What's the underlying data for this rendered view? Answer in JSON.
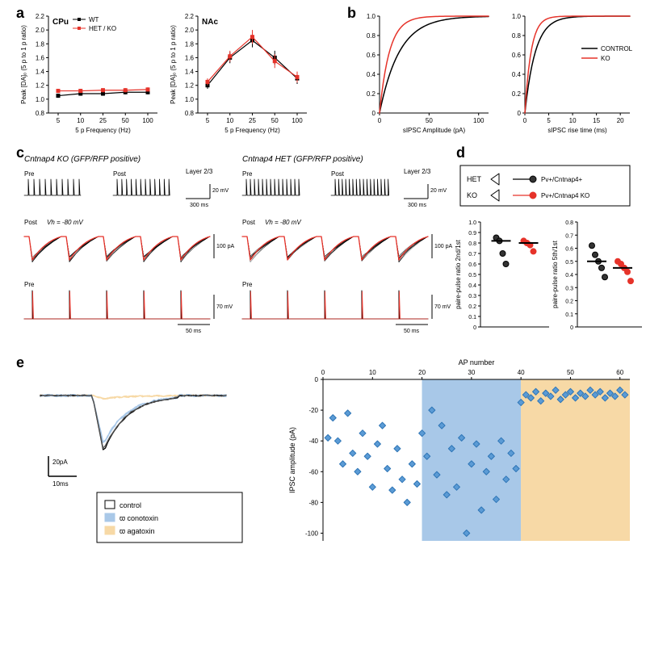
{
  "colors": {
    "bg": "#ffffff",
    "black": "#000000",
    "red": "#e6332a",
    "lightblue_fill": "#a9c8e8",
    "orange_fill": "#f7d9a6",
    "blue_marker": "#5b9bd5",
    "blue_marker_edge": "#2e75b6",
    "gray_trace": "#7a7a7a"
  },
  "panel_a": {
    "label": "a",
    "cpu_title": "CPu",
    "nac_title": "NAc",
    "legend_wt": "WT",
    "legend_mut": "HET / KO",
    "ylabel": "Peak [DA]ₒ (5 p to 1 p ratio)",
    "xlabel": "5 p Frequency (Hz)",
    "xticks": [
      "5",
      "10",
      "25",
      "50",
      "100"
    ],
    "yticks": [
      "0.8",
      "1.0",
      "1.2",
      "1.4",
      "1.6",
      "1.8",
      "2.0",
      "2.2"
    ],
    "cpu_wt": {
      "y": [
        1.05,
        1.08,
        1.08,
        1.1,
        1.1
      ],
      "err": [
        0.03,
        0.03,
        0.03,
        0.03,
        0.03
      ]
    },
    "cpu_mut": {
      "y": [
        1.12,
        1.12,
        1.13,
        1.13,
        1.14
      ],
      "err": [
        0.03,
        0.03,
        0.03,
        0.03,
        0.03
      ]
    },
    "nac_wt": {
      "y": [
        1.2,
        1.6,
        1.85,
        1.6,
        1.3
      ],
      "err": [
        0.05,
        0.08,
        0.1,
        0.1,
        0.08
      ]
    },
    "nac_mut": {
      "y": [
        1.25,
        1.62,
        1.9,
        1.55,
        1.32
      ],
      "err": [
        0.05,
        0.08,
        0.1,
        0.1,
        0.08
      ]
    }
  },
  "panel_b": {
    "label": "b",
    "left_xlabel": "sIPSC Amplitude (pA)",
    "right_xlabel": "sIPSC rise time (ms)",
    "legend_control": "CONTROL",
    "legend_ko": "KO",
    "yticks": [
      "0",
      "0.2",
      "0.4",
      "0.6",
      "0.8",
      "1.0"
    ],
    "left_xticks": [
      "0",
      "50",
      "100"
    ],
    "right_xticks": [
      "0",
      "5",
      "10",
      "15",
      "20"
    ]
  },
  "panel_c": {
    "label": "c",
    "ko_title": "Cntnap4 KO (GFP/RFP positive)",
    "het_title": "Cntnap4 HET (GFP/RFP positive)",
    "pre": "Pre",
    "post": "Post",
    "layer": "Layer 2/3",
    "vh": "Vh = -80 mV",
    "scale_300ms": "300 ms",
    "scale_20mV": "20 mV",
    "scale_100pA": "100 pA",
    "scale_50ms": "50 ms",
    "scale_70mV": "70 mV"
  },
  "panel_d": {
    "label": "d",
    "het_label": "HET",
    "ko_label": "KO",
    "het_arrow_text": "Pv+/Cntnap4+",
    "ko_arrow_text": "Pv+/Cntnap4 KO",
    "left_ylabel": "paire-pulse ratio 2nd/1st",
    "right_ylabel": "paire-pulse ratio 5th/1st",
    "left_yticks": [
      "0",
      "0.1",
      "0.2",
      "0.3",
      "0.4",
      "0.5",
      "0.6",
      "0.7",
      "0.8",
      "0.9",
      "1.0"
    ],
    "right_yticks": [
      "0",
      "0.1",
      "0.2",
      "0.3",
      "0.4",
      "0.5",
      "0.6",
      "0.7",
      "0.8"
    ],
    "left_het": [
      0.85,
      0.82,
      0.7,
      0.6
    ],
    "left_ko": [
      0.82,
      0.8,
      0.78,
      0.72
    ],
    "right_het": [
      0.62,
      0.55,
      0.5,
      0.45,
      0.38
    ],
    "right_ko": [
      0.5,
      0.48,
      0.45,
      0.42,
      0.35
    ]
  },
  "panel_e": {
    "label": "e",
    "legend_control": "control",
    "legend_conotoxin": "ϖ conotoxin",
    "legend_agatoxin": "ϖ agatoxin",
    "scale_20pA": "20pA",
    "scale_10ms": "10ms",
    "right_xlabel": "AP number",
    "right_ylabel": "IPSC amplitude (pA)",
    "xticks": [
      "0",
      "10",
      "20",
      "30",
      "40",
      "50",
      "60"
    ],
    "yticks": [
      "0",
      "-20",
      "-40",
      "-60",
      "-80",
      "-100"
    ],
    "zone1_start": 20,
    "zone1_end": 40,
    "zone2_start": 40,
    "zone2_end": 62,
    "points": [
      [
        1,
        -38
      ],
      [
        2,
        -25
      ],
      [
        3,
        -40
      ],
      [
        4,
        -55
      ],
      [
        5,
        -22
      ],
      [
        6,
        -48
      ],
      [
        7,
        -60
      ],
      [
        8,
        -35
      ],
      [
        9,
        -50
      ],
      [
        10,
        -70
      ],
      [
        11,
        -42
      ],
      [
        12,
        -30
      ],
      [
        13,
        -58
      ],
      [
        14,
        -72
      ],
      [
        15,
        -45
      ],
      [
        16,
        -65
      ],
      [
        17,
        -80
      ],
      [
        18,
        -55
      ],
      [
        19,
        -68
      ],
      [
        20,
        -35
      ],
      [
        21,
        -50
      ],
      [
        22,
        -20
      ],
      [
        23,
        -62
      ],
      [
        24,
        -30
      ],
      [
        25,
        -75
      ],
      [
        26,
        -45
      ],
      [
        27,
        -70
      ],
      [
        28,
        -38
      ],
      [
        29,
        -100
      ],
      [
        30,
        -55
      ],
      [
        31,
        -42
      ],
      [
        32,
        -85
      ],
      [
        33,
        -60
      ],
      [
        34,
        -50
      ],
      [
        35,
        -78
      ],
      [
        36,
        -40
      ],
      [
        37,
        -65
      ],
      [
        38,
        -48
      ],
      [
        39,
        -58
      ],
      [
        40,
        -15
      ],
      [
        41,
        -10
      ],
      [
        42,
        -12
      ],
      [
        43,
        -8
      ],
      [
        44,
        -14
      ],
      [
        45,
        -9
      ],
      [
        46,
        -11
      ],
      [
        47,
        -7
      ],
      [
        48,
        -13
      ],
      [
        49,
        -10
      ],
      [
        50,
        -8
      ],
      [
        51,
        -12
      ],
      [
        52,
        -9
      ],
      [
        53,
        -11
      ],
      [
        54,
        -7
      ],
      [
        55,
        -10
      ],
      [
        56,
        -8
      ],
      [
        57,
        -12
      ],
      [
        58,
        -9
      ],
      [
        59,
        -11
      ],
      [
        60,
        -7
      ],
      [
        61,
        -10
      ]
    ]
  }
}
